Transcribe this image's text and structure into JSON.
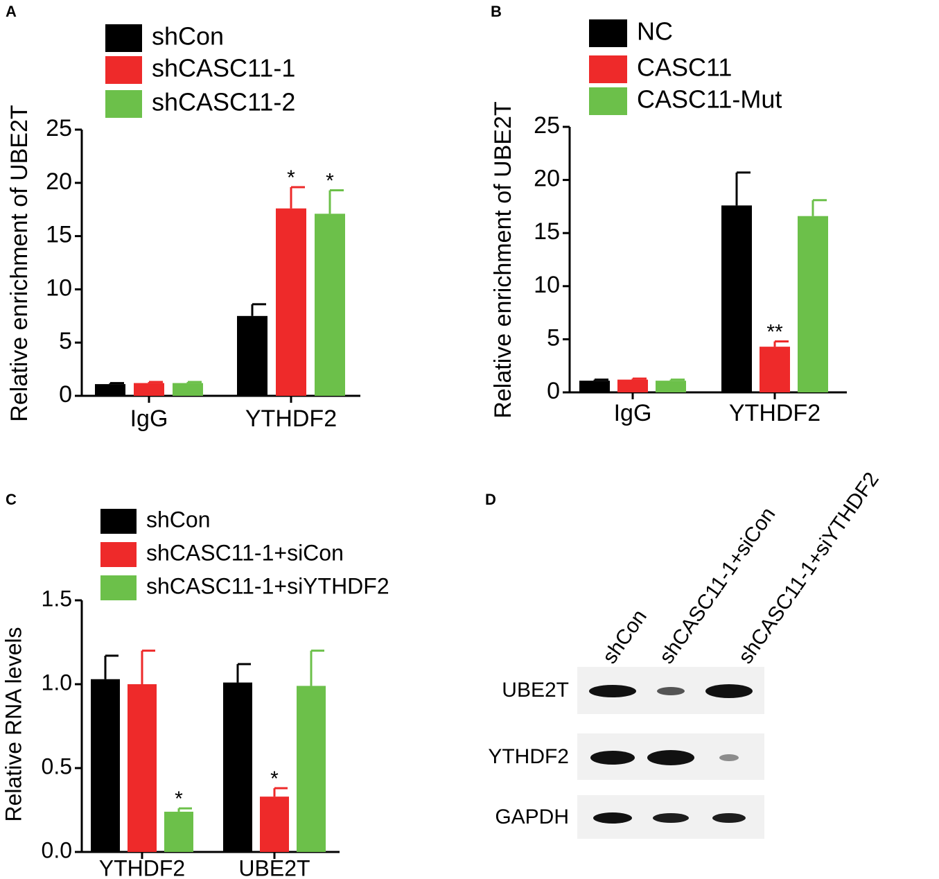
{
  "chart_data": [
    {
      "type": "bar",
      "panel": "A",
      "y_label": "Relative enrichment of UBE2T",
      "categories": [
        "IgG",
        "YTHDF2"
      ],
      "series": [
        {
          "name": "shCon",
          "color": "#000000",
          "values": [
            1.1,
            7.5
          ],
          "errors": [
            0.1,
            1.1
          ],
          "annotations": [
            null,
            null
          ]
        },
        {
          "name": "shCASC11-1",
          "color": "#ee2a2a",
          "values": [
            1.2,
            17.6
          ],
          "errors": [
            0.1,
            2.0
          ],
          "annotations": [
            null,
            "*"
          ]
        },
        {
          "name": "shCASC11-2",
          "color": "#6cc04a",
          "values": [
            1.2,
            17.1
          ],
          "errors": [
            0.1,
            2.2
          ],
          "annotations": [
            null,
            "*"
          ]
        }
      ],
      "ylim": [
        0,
        25
      ],
      "yticks": [
        0,
        5,
        10,
        15,
        20,
        25
      ]
    },
    {
      "type": "bar",
      "panel": "B",
      "y_label": "Relative enrichment of UBE2T",
      "categories": [
        "IgG",
        "YTHDF2"
      ],
      "series": [
        {
          "name": "NC",
          "color": "#000000",
          "values": [
            1.1,
            17.6
          ],
          "errors": [
            0.1,
            3.1
          ],
          "annotations": [
            null,
            null
          ]
        },
        {
          "name": "CASC11",
          "color": "#ee2a2a",
          "values": [
            1.2,
            4.3
          ],
          "errors": [
            0.1,
            0.5
          ],
          "annotations": [
            null,
            "**"
          ]
        },
        {
          "name": "CASC11-Mut",
          "color": "#6cc04a",
          "values": [
            1.1,
            16.6
          ],
          "errors": [
            0.1,
            1.5
          ],
          "annotations": [
            null,
            null
          ]
        }
      ],
      "ylim": [
        0,
        25
      ],
      "yticks": [
        0,
        5,
        10,
        15,
        20,
        25
      ]
    },
    {
      "type": "bar",
      "panel": "C",
      "y_label": "Relative RNA levels",
      "categories": [
        "YTHDF2",
        "UBE2T"
      ],
      "series": [
        {
          "name": "shCon",
          "color": "#000000",
          "values": [
            1.03,
            1.01
          ],
          "errors": [
            0.14,
            0.11
          ],
          "annotations": [
            null,
            null
          ]
        },
        {
          "name": "shCASC11-1+siCon",
          "color": "#ee2a2a",
          "values": [
            1.0,
            0.33
          ],
          "errors": [
            0.2,
            0.05
          ],
          "annotations": [
            null,
            "*"
          ]
        },
        {
          "name": "shCASC11-1+siYTHDF2",
          "color": "#6cc04a",
          "values": [
            0.24,
            0.99
          ],
          "errors": [
            0.02,
            0.21
          ],
          "annotations": [
            "*",
            null
          ]
        }
      ],
      "ylim": [
        0,
        1.5
      ],
      "yticks": [
        {
          "value": 0,
          "label": "0.0"
        },
        0.5,
        {
          "value": 1,
          "label": "1.0"
        },
        1.5
      ]
    }
  ],
  "blot": {
    "panel": "D",
    "lanes": [
      "shCon",
      "shCASC11-1+siCon",
      "shCASC11-1+siYTHDF2"
    ],
    "rows": [
      "UBE2T",
      "YTHDF2",
      "GAPDH"
    ]
  }
}
